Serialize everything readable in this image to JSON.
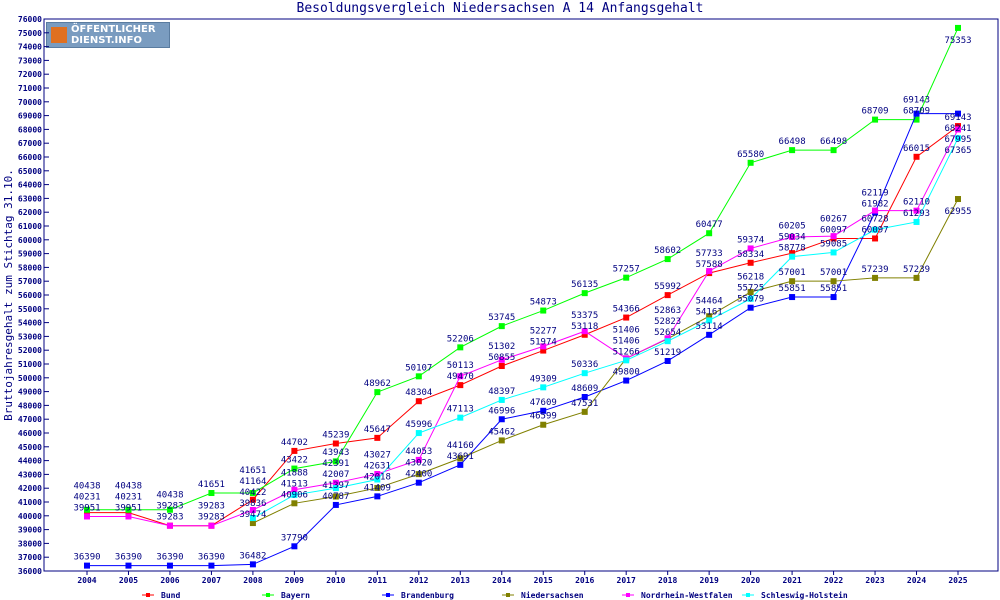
{
  "chart_data": {
    "type": "line",
    "title": "Besoldungsvergleich Niedersachsen A 14 Anfangsgehalt",
    "xlabel": "",
    "ylabel": "Bruttojahresgehalt zum Stichtag 31.10.",
    "ylim": [
      36000,
      76000
    ],
    "ytick_step": 1000,
    "grid": false,
    "legend": "bottom",
    "label_color": "#000080",
    "x": [
      2004,
      2005,
      2006,
      2007,
      2008,
      2009,
      2010,
      2011,
      2012,
      2013,
      2014,
      2015,
      2016,
      2017,
      2018,
      2019,
      2020,
      2021,
      2022,
      2023,
      2024,
      2025
    ],
    "series": [
      {
        "name": "Bund",
        "color": "#ff0000",
        "values": [
          40231,
          40231,
          39283,
          39283,
          41164,
          44702,
          45239,
          45647,
          48304,
          49470,
          50855,
          51974,
          53118,
          54366,
          55992,
          57588,
          58334,
          59034,
          60097,
          60097,
          66015,
          68241
        ]
      },
      {
        "name": "Bayern",
        "color": "#00ff00",
        "values": [
          40438,
          40438,
          40438,
          41651,
          41651,
          43422,
          43943,
          48962,
          50107,
          52206,
          53745,
          54873,
          56135,
          57257,
          58602,
          60477,
          65580,
          66498,
          66498,
          68709,
          68709,
          75353
        ]
      },
      {
        "name": "Brandenburg",
        "color": "#0000ff",
        "values": [
          36390,
          36390,
          36390,
          36390,
          36482,
          37790,
          40787,
          41409,
          42400,
          43691,
          46996,
          47609,
          48609,
          49800,
          51219,
          53114,
          55079,
          55851,
          55851,
          61982,
          69143,
          69143
        ]
      },
      {
        "name": "Niedersachsen",
        "color": "#808000",
        "values": [
          null,
          null,
          null,
          null,
          39474,
          40906,
          41397,
          42018,
          43020,
          44160,
          45462,
          46599,
          47531,
          51406,
          52823,
          54464,
          56218,
          57001,
          57001,
          57239,
          57239,
          62955
        ]
      },
      {
        "name": "Nordrhein-Westfalen",
        "color": "#ff00ff",
        "values": [
          39951,
          39951,
          39283,
          39283,
          40422,
          41888,
          42391,
          43027,
          44053,
          50113,
          51302,
          52277,
          53375,
          51406,
          52863,
          57733,
          59374,
          60205,
          60267,
          62119,
          62110,
          67995
        ]
      },
      {
        "name": "Schleswig-Holstein",
        "color": "#00ffff",
        "values": [
          null,
          null,
          null,
          null,
          39836,
          41513,
          42007,
          42631,
          45996,
          47113,
          48397,
          49309,
          50336,
          51266,
          52654,
          54161,
          55725,
          58778,
          59085,
          60728,
          61293,
          67365
        ]
      }
    ]
  },
  "logo": {
    "line1": "ÖFFENTLICHER",
    "line2": "DIENST.INFO"
  }
}
